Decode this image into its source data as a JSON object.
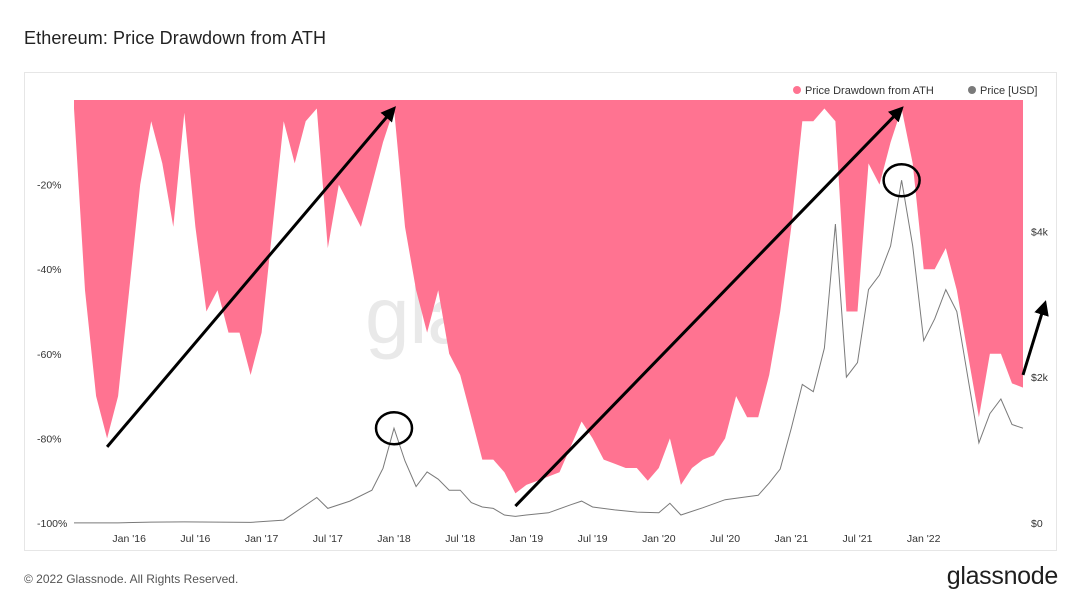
{
  "header": {
    "title": "Ethereum: Price Drawdown from ATH"
  },
  "footer": {
    "copyright": "© 2022 Glassnode. All Rights Reserved.",
    "logo": "glassnode",
    "watermark": "gla"
  },
  "colors": {
    "drawdown": "#ff7391",
    "price": "#7a7a7a",
    "annotation": "#000000"
  },
  "chart_data": {
    "type": "area",
    "legend": [
      "Price Drawdown from ATH",
      "Price [USD]"
    ],
    "legend_position": "top-right",
    "x_range": [
      "2015-08",
      "2022-10"
    ],
    "x_ticks": [
      "Jan '16",
      "Jul '16",
      "Jan '17",
      "Jul '17",
      "Jan '18",
      "Jul '18",
      "Jan '19",
      "Jul '19",
      "Jan '20",
      "Jul '20",
      "Jan '21",
      "Jul '21",
      "Jan '22"
    ],
    "y_left": {
      "ticks": [
        "-20%",
        "-40%",
        "-60%",
        "-80%",
        "-100%"
      ],
      "range": [
        -100,
        0
      ]
    },
    "y_right": {
      "ticks": [
        "$4k",
        "$2k",
        "$0"
      ],
      "range": [
        0,
        5800
      ]
    },
    "series": [
      {
        "name": "Price Drawdown from ATH",
        "axis": "left",
        "points": [
          [
            "2015-08",
            -2
          ],
          [
            "2015-09",
            -45
          ],
          [
            "2015-10",
            -70
          ],
          [
            "2015-11",
            -80
          ],
          [
            "2015-12",
            -70
          ],
          [
            "2016-01",
            -45
          ],
          [
            "2016-02",
            -20
          ],
          [
            "2016-03",
            -5
          ],
          [
            "2016-04",
            -15
          ],
          [
            "2016-05",
            -30
          ],
          [
            "2016-06",
            -3
          ],
          [
            "2016-07",
            -30
          ],
          [
            "2016-08",
            -50
          ],
          [
            "2016-09",
            -45
          ],
          [
            "2016-10",
            -55
          ],
          [
            "2016-11",
            -55
          ],
          [
            "2016-12",
            -65
          ],
          [
            "2017-01",
            -55
          ],
          [
            "2017-02",
            -30
          ],
          [
            "2017-03",
            -5
          ],
          [
            "2017-04",
            -15
          ],
          [
            "2017-05",
            -5
          ],
          [
            "2017-06",
            -2
          ],
          [
            "2017-07",
            -35
          ],
          [
            "2017-08",
            -20
          ],
          [
            "2017-09",
            -25
          ],
          [
            "2017-10",
            -30
          ],
          [
            "2017-11",
            -20
          ],
          [
            "2017-12",
            -10
          ],
          [
            "2018-01",
            -2
          ],
          [
            "2018-02",
            -30
          ],
          [
            "2018-03",
            -45
          ],
          [
            "2018-04",
            -55
          ],
          [
            "2018-05",
            -45
          ],
          [
            "2018-06",
            -60
          ],
          [
            "2018-07",
            -65
          ],
          [
            "2018-08",
            -75
          ],
          [
            "2018-09",
            -85
          ],
          [
            "2018-10",
            -85
          ],
          [
            "2018-11",
            -88
          ],
          [
            "2018-12",
            -93
          ],
          [
            "2019-01",
            -91
          ],
          [
            "2019-02",
            -90
          ],
          [
            "2019-03",
            -89
          ],
          [
            "2019-04",
            -88
          ],
          [
            "2019-05",
            -82
          ],
          [
            "2019-06",
            -76
          ],
          [
            "2019-07",
            -80
          ],
          [
            "2019-08",
            -85
          ],
          [
            "2019-09",
            -86
          ],
          [
            "2019-10",
            -87
          ],
          [
            "2019-11",
            -87
          ],
          [
            "2019-12",
            -90
          ],
          [
            "2020-01",
            -87
          ],
          [
            "2020-02",
            -80
          ],
          [
            "2020-03",
            -91
          ],
          [
            "2020-04",
            -87
          ],
          [
            "2020-05",
            -85
          ],
          [
            "2020-06",
            -84
          ],
          [
            "2020-07",
            -80
          ],
          [
            "2020-08",
            -70
          ],
          [
            "2020-09",
            -75
          ],
          [
            "2020-10",
            -75
          ],
          [
            "2020-11",
            -65
          ],
          [
            "2020-12",
            -50
          ],
          [
            "2021-01",
            -30
          ],
          [
            "2021-02",
            -5
          ],
          [
            "2021-03",
            -5
          ],
          [
            "2021-04",
            -2
          ],
          [
            "2021-05",
            -5
          ],
          [
            "2021-06",
            -50
          ],
          [
            "2021-07",
            -50
          ],
          [
            "2021-08",
            -15
          ],
          [
            "2021-09",
            -20
          ],
          [
            "2021-10",
            -10
          ],
          [
            "2021-11",
            -2
          ],
          [
            "2021-12",
            -15
          ],
          [
            "2022-01",
            -40
          ],
          [
            "2022-02",
            -40
          ],
          [
            "2022-03",
            -35
          ],
          [
            "2022-04",
            -45
          ],
          [
            "2022-05",
            -60
          ],
          [
            "2022-06",
            -75
          ],
          [
            "2022-07",
            -60
          ],
          [
            "2022-08",
            -60
          ],
          [
            "2022-09",
            -67
          ],
          [
            "2022-10",
            -68
          ]
        ]
      },
      {
        "name": "Price [USD]",
        "axis": "right",
        "points": [
          [
            "2015-08",
            2
          ],
          [
            "2015-12",
            1
          ],
          [
            "2016-03",
            12
          ],
          [
            "2016-06",
            15
          ],
          [
            "2016-09",
            12
          ],
          [
            "2016-12",
            8
          ],
          [
            "2017-03",
            40
          ],
          [
            "2017-06",
            350
          ],
          [
            "2017-07",
            200
          ],
          [
            "2017-09",
            300
          ],
          [
            "2017-11",
            450
          ],
          [
            "2017-12",
            750
          ],
          [
            "2018-01",
            1300
          ],
          [
            "2018-02",
            850
          ],
          [
            "2018-03",
            500
          ],
          [
            "2018-04",
            700
          ],
          [
            "2018-05",
            600
          ],
          [
            "2018-06",
            450
          ],
          [
            "2018-07",
            450
          ],
          [
            "2018-08",
            280
          ],
          [
            "2018-09",
            220
          ],
          [
            "2018-10",
            200
          ],
          [
            "2018-11",
            110
          ],
          [
            "2018-12",
            90
          ],
          [
            "2019-01",
            110
          ],
          [
            "2019-03",
            140
          ],
          [
            "2019-05",
            250
          ],
          [
            "2019-06",
            300
          ],
          [
            "2019-07",
            220
          ],
          [
            "2019-09",
            180
          ],
          [
            "2019-11",
            150
          ],
          [
            "2020-01",
            140
          ],
          [
            "2020-02",
            270
          ],
          [
            "2020-03",
            110
          ],
          [
            "2020-05",
            210
          ],
          [
            "2020-07",
            320
          ],
          [
            "2020-09",
            360
          ],
          [
            "2020-10",
            380
          ],
          [
            "2020-11",
            550
          ],
          [
            "2020-12",
            740
          ],
          [
            "2021-01",
            1300
          ],
          [
            "2021-02",
            1900
          ],
          [
            "2021-03",
            1800
          ],
          [
            "2021-04",
            2400
          ],
          [
            "2021-05",
            4100
          ],
          [
            "2021-06",
            2000
          ],
          [
            "2021-07",
            2200
          ],
          [
            "2021-08",
            3200
          ],
          [
            "2021-09",
            3400
          ],
          [
            "2021-10",
            3800
          ],
          [
            "2021-11",
            4700
          ],
          [
            "2021-12",
            3800
          ],
          [
            "2022-01",
            2500
          ],
          [
            "2022-02",
            2800
          ],
          [
            "2022-03",
            3200
          ],
          [
            "2022-04",
            2900
          ],
          [
            "2022-05",
            2000
          ],
          [
            "2022-06",
            1100
          ],
          [
            "2022-07",
            1500
          ],
          [
            "2022-08",
            1700
          ],
          [
            "2022-09",
            1350
          ],
          [
            "2022-10",
            1300
          ]
        ]
      }
    ],
    "annotations": [
      {
        "type": "arrow",
        "from": [
          "2015-11",
          -82
        ],
        "to": [
          "2018-01",
          -2
        ]
      },
      {
        "type": "circle",
        "at": [
          "2018-01",
          1300
        ]
      },
      {
        "type": "arrow",
        "from": [
          "2018-12",
          -96
        ],
        "to": [
          "2021-11",
          -2
        ]
      },
      {
        "type": "circle",
        "at": [
          "2021-11",
          4700
        ]
      },
      {
        "type": "arrow",
        "from": [
          "2022-10",
          -65
        ],
        "to": [
          "2022-12",
          -48
        ]
      }
    ]
  }
}
